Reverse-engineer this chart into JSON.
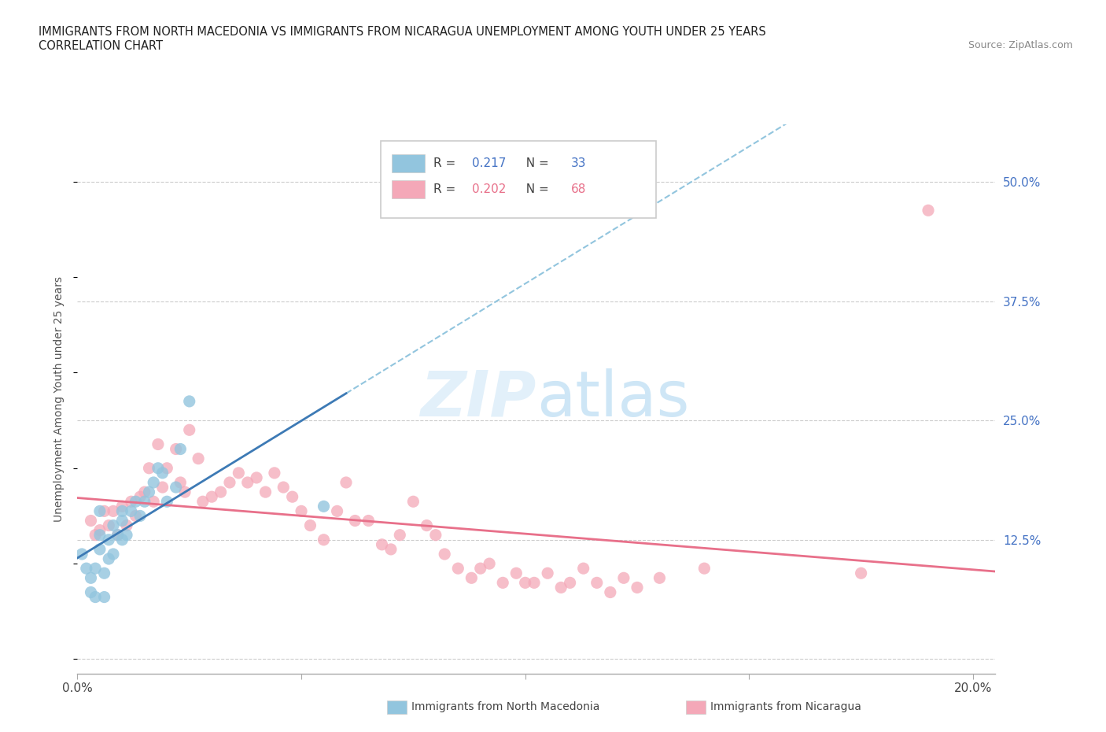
{
  "title_line1": "IMMIGRANTS FROM NORTH MACEDONIA VS IMMIGRANTS FROM NICARAGUA UNEMPLOYMENT AMONG YOUTH UNDER 25 YEARS",
  "title_line2": "CORRELATION CHART",
  "source": "Source: ZipAtlas.com",
  "ylabel": "Unemployment Among Youth under 25 years",
  "xlim": [
    0.0,
    0.205
  ],
  "ylim": [
    -0.015,
    0.56
  ],
  "yticks": [
    0.0,
    0.125,
    0.25,
    0.375,
    0.5
  ],
  "ytick_labels": [
    "",
    "12.5%",
    "25.0%",
    "37.5%",
    "50.0%"
  ],
  "xticks": [
    0.0,
    0.05,
    0.1,
    0.15,
    0.2
  ],
  "xtick_labels": [
    "0.0%",
    "",
    "",
    "",
    "20.0%"
  ],
  "color_north_macedonia": "#92C5DE",
  "color_nicaragua": "#F4A8B8",
  "trend_color_north_macedonia_solid": "#3D7AB5",
  "trend_color_north_macedonia_dashed": "#92C5DE",
  "trend_color_nicaragua": "#E8708A",
  "R_north_macedonia": 0.217,
  "N_north_macedonia": 33,
  "R_nicaragua": 0.202,
  "N_nicaragua": 68,
  "scatter_north_macedonia_x": [
    0.002,
    0.003,
    0.004,
    0.005,
    0.005,
    0.005,
    0.006,
    0.007,
    0.007,
    0.008,
    0.008,
    0.009,
    0.01,
    0.01,
    0.01,
    0.011,
    0.012,
    0.013,
    0.014,
    0.015,
    0.016,
    0.017,
    0.018,
    0.019,
    0.02,
    0.022,
    0.023,
    0.025,
    0.003,
    0.004,
    0.006,
    0.055,
    0.001
  ],
  "scatter_north_macedonia_y": [
    0.095,
    0.085,
    0.095,
    0.155,
    0.13,
    0.115,
    0.09,
    0.105,
    0.125,
    0.14,
    0.11,
    0.13,
    0.145,
    0.155,
    0.125,
    0.13,
    0.155,
    0.165,
    0.15,
    0.165,
    0.175,
    0.185,
    0.2,
    0.195,
    0.165,
    0.18,
    0.22,
    0.27,
    0.07,
    0.065,
    0.065,
    0.16,
    0.11
  ],
  "scatter_nicaragua_x": [
    0.003,
    0.004,
    0.005,
    0.006,
    0.007,
    0.008,
    0.009,
    0.01,
    0.011,
    0.012,
    0.013,
    0.014,
    0.015,
    0.016,
    0.017,
    0.018,
    0.019,
    0.02,
    0.022,
    0.023,
    0.024,
    0.025,
    0.027,
    0.028,
    0.03,
    0.032,
    0.034,
    0.036,
    0.038,
    0.04,
    0.042,
    0.044,
    0.046,
    0.048,
    0.05,
    0.052,
    0.055,
    0.058,
    0.06,
    0.062,
    0.065,
    0.068,
    0.07,
    0.072,
    0.075,
    0.078,
    0.08,
    0.082,
    0.085,
    0.088,
    0.09,
    0.092,
    0.095,
    0.098,
    0.1,
    0.102,
    0.105,
    0.108,
    0.11,
    0.113,
    0.116,
    0.119,
    0.122,
    0.125,
    0.13,
    0.14,
    0.175,
    0.19
  ],
  "scatter_nicaragua_y": [
    0.145,
    0.13,
    0.135,
    0.155,
    0.14,
    0.155,
    0.13,
    0.16,
    0.14,
    0.165,
    0.15,
    0.17,
    0.175,
    0.2,
    0.165,
    0.225,
    0.18,
    0.2,
    0.22,
    0.185,
    0.175,
    0.24,
    0.21,
    0.165,
    0.17,
    0.175,
    0.185,
    0.195,
    0.185,
    0.19,
    0.175,
    0.195,
    0.18,
    0.17,
    0.155,
    0.14,
    0.125,
    0.155,
    0.185,
    0.145,
    0.145,
    0.12,
    0.115,
    0.13,
    0.165,
    0.14,
    0.13,
    0.11,
    0.095,
    0.085,
    0.095,
    0.1,
    0.08,
    0.09,
    0.08,
    0.08,
    0.09,
    0.075,
    0.08,
    0.095,
    0.08,
    0.07,
    0.085,
    0.075,
    0.085,
    0.095,
    0.09,
    0.47
  ]
}
